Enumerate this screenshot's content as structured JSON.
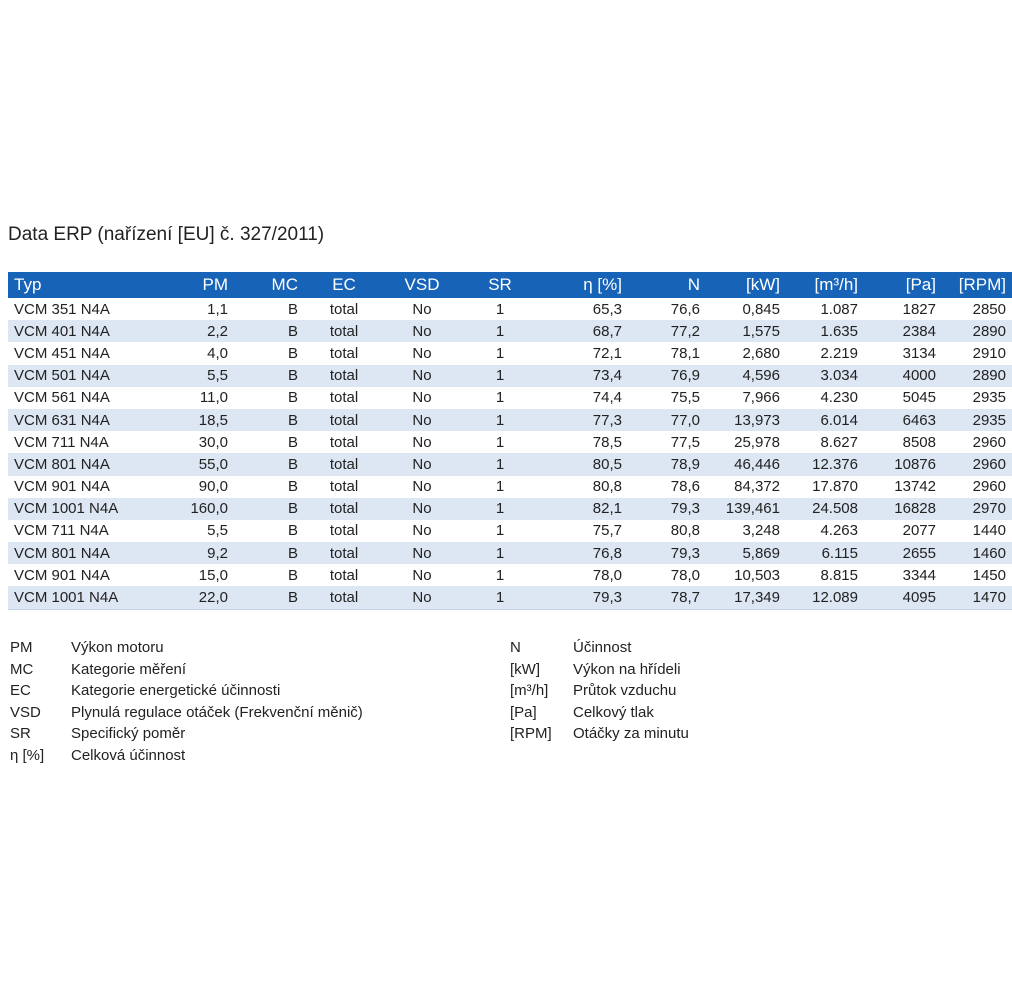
{
  "title": "Data ERP (nařízení [EU] č. 327/2011)",
  "table": {
    "columns": [
      "Typ",
      "PM",
      "MC",
      "EC",
      "VSD",
      "SR",
      "η [%]",
      "N",
      "[kW]",
      "[m³/h]",
      "[Pa]",
      "[RPM]"
    ],
    "rows": [
      [
        "VCM 351 N4A",
        "1,1",
        "B",
        "total",
        "No",
        "1",
        "65,3",
        "76,6",
        "0,845",
        "1.087",
        "1827",
        "2850"
      ],
      [
        "VCM 401 N4A",
        "2,2",
        "B",
        "total",
        "No",
        "1",
        "68,7",
        "77,2",
        "1,575",
        "1.635",
        "2384",
        "2890"
      ],
      [
        "VCM 451 N4A",
        "4,0",
        "B",
        "total",
        "No",
        "1",
        "72,1",
        "78,1",
        "2,680",
        "2.219",
        "3134",
        "2910"
      ],
      [
        "VCM 501 N4A",
        "5,5",
        "B",
        "total",
        "No",
        "1",
        "73,4",
        "76,9",
        "4,596",
        "3.034",
        "4000",
        "2890"
      ],
      [
        "VCM 561 N4A",
        "11,0",
        "B",
        "total",
        "No",
        "1",
        "74,4",
        "75,5",
        "7,966",
        "4.230",
        "5045",
        "2935"
      ],
      [
        "VCM 631 N4A",
        "18,5",
        "B",
        "total",
        "No",
        "1",
        "77,3",
        "77,0",
        "13,973",
        "6.014",
        "6463",
        "2935"
      ],
      [
        "VCM 711 N4A",
        "30,0",
        "B",
        "total",
        "No",
        "1",
        "78,5",
        "77,5",
        "25,978",
        "8.627",
        "8508",
        "2960"
      ],
      [
        "VCM 801 N4A",
        "55,0",
        "B",
        "total",
        "No",
        "1",
        "80,5",
        "78,9",
        "46,446",
        "12.376",
        "10876",
        "2960"
      ],
      [
        "VCM 901 N4A",
        "90,0",
        "B",
        "total",
        "No",
        "1",
        "80,8",
        "78,6",
        "84,372",
        "17.870",
        "13742",
        "2960"
      ],
      [
        "VCM 1001 N4A",
        "160,0",
        "B",
        "total",
        "No",
        "1",
        "82,1",
        "79,3",
        "139,461",
        "24.508",
        "16828",
        "2970"
      ],
      [
        "VCM 711 N4A",
        "5,5",
        "B",
        "total",
        "No",
        "1",
        "75,7",
        "80,8",
        "3,248",
        "4.263",
        "2077",
        "1440"
      ],
      [
        "VCM 801 N4A",
        "9,2",
        "B",
        "total",
        "No",
        "1",
        "76,8",
        "79,3",
        "5,869",
        "6.115",
        "2655",
        "1460"
      ],
      [
        "VCM 901 N4A",
        "15,0",
        "B",
        "total",
        "No",
        "1",
        "78,0",
        "78,0",
        "10,503",
        "8.815",
        "3344",
        "1450"
      ],
      [
        "VCM 1001 N4A",
        "22,0",
        "B",
        "total",
        "No",
        "1",
        "79,3",
        "78,7",
        "17,349",
        "12.089",
        "4095",
        "1470"
      ]
    ]
  },
  "legend_left": [
    {
      "abbr": "PM",
      "desc": "Výkon motoru"
    },
    {
      "abbr": "MC",
      "desc": "Kategorie měření"
    },
    {
      "abbr": "EC",
      "desc": "Kategorie energetické účinnosti"
    },
    {
      "abbr": "VSD",
      "desc": "Plynulá regulace otáček (Frekvenční měnič)"
    },
    {
      "abbr": "SR",
      "desc": "Specifický poměr"
    },
    {
      "abbr": "η [%]",
      "desc": "Celková účinnost"
    }
  ],
  "legend_right": [
    {
      "abbr": "N",
      "desc": "Účinnost"
    },
    {
      "abbr": "[kW]",
      "desc": "Výkon na hřídeli"
    },
    {
      "abbr": "[m³/h]",
      "desc": "Průtok vzduchu"
    },
    {
      "abbr": "[Pa]",
      "desc": "Celkový tlak"
    },
    {
      "abbr": "[RPM]",
      "desc": "Otáčky za minutu"
    }
  ]
}
